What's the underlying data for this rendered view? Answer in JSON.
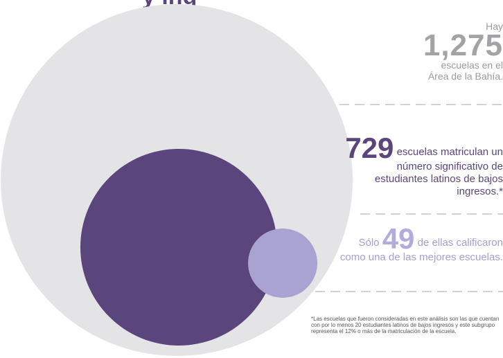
{
  "title_fragment": "y ing",
  "colors": {
    "outer_circle": "#e4e4e6",
    "middle_circle": "#5a467c",
    "inner_circle": "#a9a3d2",
    "dash_line": "#b8b8b8"
  },
  "stats": {
    "total": {
      "prefix": "Hay",
      "number": "1,275",
      "line1": "escuelas en el",
      "line2": "Área de la Bahía."
    },
    "latino": {
      "number": "729",
      "text": "escuelas matriculan un número significativo de estudiantes latinos de bajos ingresos.*"
    },
    "top": {
      "prefix": "Sólo",
      "number": "49",
      "text": "de ellas calificaron como una de las mejores escuelas."
    }
  },
  "footnote": "*Las escuelas que fueron consideradas en este análisis son las que cuentan con por lo menos 20 estudiantes latinos de bajos ingresos y este subgrupo representa el 12% o más de la matriculación de la escuela."
}
